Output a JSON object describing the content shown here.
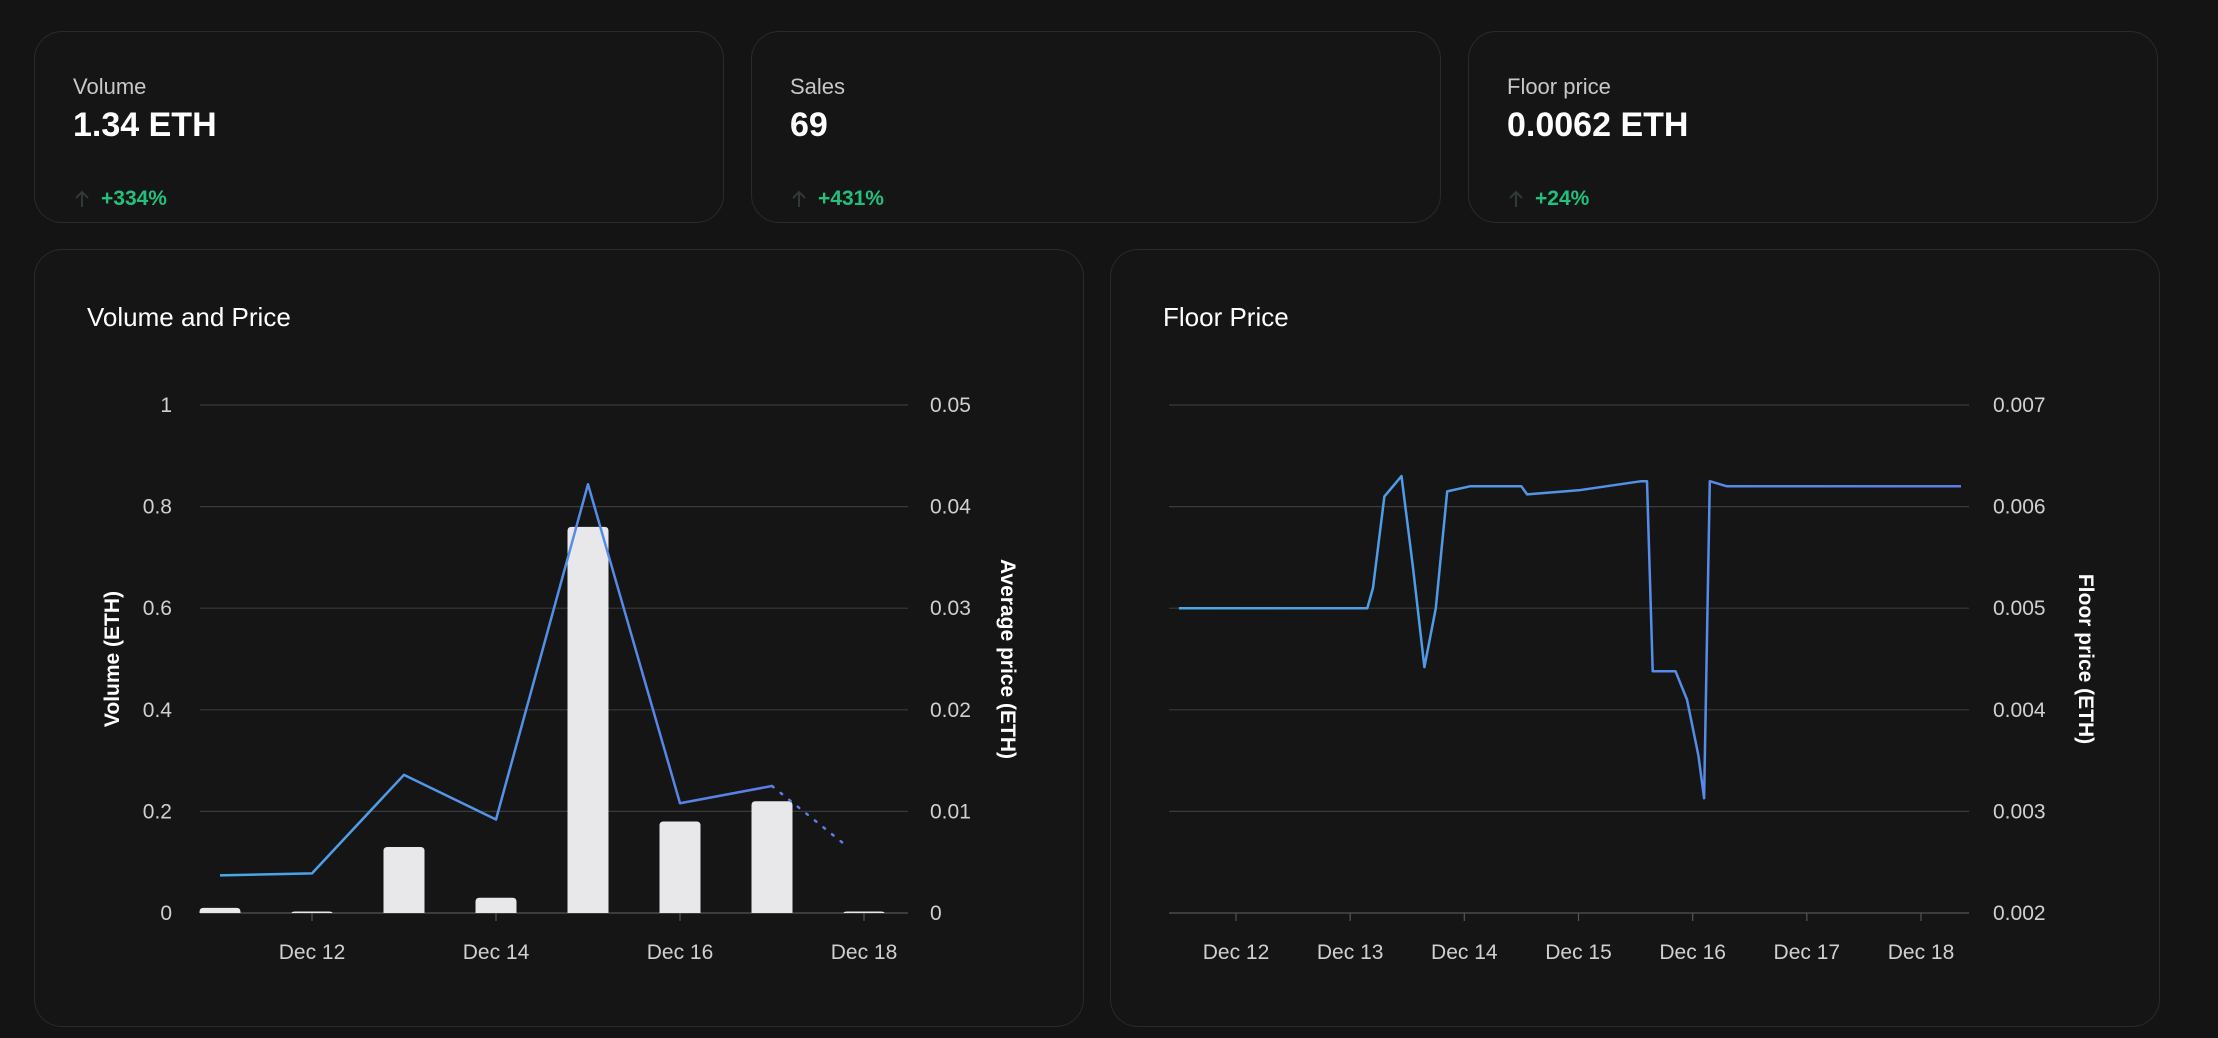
{
  "stats": [
    {
      "label": "Volume",
      "value": "1.34 ETH",
      "change": "+334%"
    },
    {
      "label": "Sales",
      "value": "69",
      "change": "+431%"
    },
    {
      "label": "Floor price",
      "value": "0.0062 ETH",
      "change": "+24%"
    }
  ],
  "colors": {
    "positive": "#22c07a",
    "bar": "#e8e8ea",
    "line": "#5b7de8",
    "line_start": "#4aa8e8"
  },
  "chart_data": [
    {
      "type": "bar",
      "title": "Volume and Price",
      "ylabel": "Volume (ETH)",
      "y2label": "Average price (ETH)",
      "ylim": [
        0,
        1
      ],
      "y2lim": [
        0,
        0.05
      ],
      "yticks": [
        "0",
        "0.2",
        "0.4",
        "0.6",
        "0.8",
        "1"
      ],
      "y2ticks": [
        "0",
        "0.01",
        "0.02",
        "0.03",
        "0.04",
        "0.05"
      ],
      "xticks": [
        "Dec 12",
        "Dec 14",
        "Dec 16",
        "Dec 18"
      ],
      "grid": true,
      "series": [
        {
          "kind": "bar",
          "x": [
            "Dec 11",
            "Dec 12",
            "Dec 13",
            "Dec 14",
            "Dec 15",
            "Dec 16",
            "Dec 17",
            "Dec 18"
          ],
          "values": [
            0.01,
            0.002,
            0.13,
            0.03,
            0.76,
            0.18,
            0.22,
            0.003
          ]
        },
        {
          "kind": "line",
          "x": [
            "Dec 11",
            "Dec 12",
            "Dec 13",
            "Dec 14",
            "Dec 15",
            "Dec 16",
            "Dec 17"
          ],
          "values": [
            0.0037,
            0.0039,
            0.0136,
            0.0092,
            0.0422,
            0.0108,
            0.0125
          ]
        },
        {
          "kind": "line-dotted",
          "x": [
            "Dec 17",
            "Dec 18"
          ],
          "values": [
            0.0125,
            0.0068
          ]
        }
      ]
    },
    {
      "type": "line",
      "title": "Floor Price",
      "y2label": "Floor price (ETH)",
      "ylim": [
        0.002,
        0.007
      ],
      "yticks": [
        "0.002",
        "0.003",
        "0.004",
        "0.005",
        "0.006",
        "0.007"
      ],
      "xticks": [
        "Dec 12",
        "Dec 13",
        "Dec 14",
        "Dec 15",
        "Dec 16",
        "Dec 17",
        "Dec 18"
      ],
      "grid": true,
      "series": [
        {
          "x": [
            11.5,
            12.5,
            13.15,
            13.2,
            13.3,
            13.45,
            13.55,
            13.65,
            13.75,
            13.85,
            14.05,
            14.5,
            14.55,
            15.0,
            15.55,
            15.6,
            15.65,
            15.85,
            15.95,
            16.05,
            16.1,
            16.15,
            16.3,
            17.0,
            18.35
          ],
          "values": [
            0.005,
            0.005,
            0.005,
            0.0052,
            0.0061,
            0.0063,
            0.0054,
            0.00442,
            0.005,
            0.00615,
            0.0062,
            0.0062,
            0.00612,
            0.00616,
            0.00625,
            0.00625,
            0.00438,
            0.00438,
            0.0041,
            0.00355,
            0.00313,
            0.00625,
            0.0062,
            0.0062,
            0.0062
          ]
        }
      ]
    }
  ]
}
